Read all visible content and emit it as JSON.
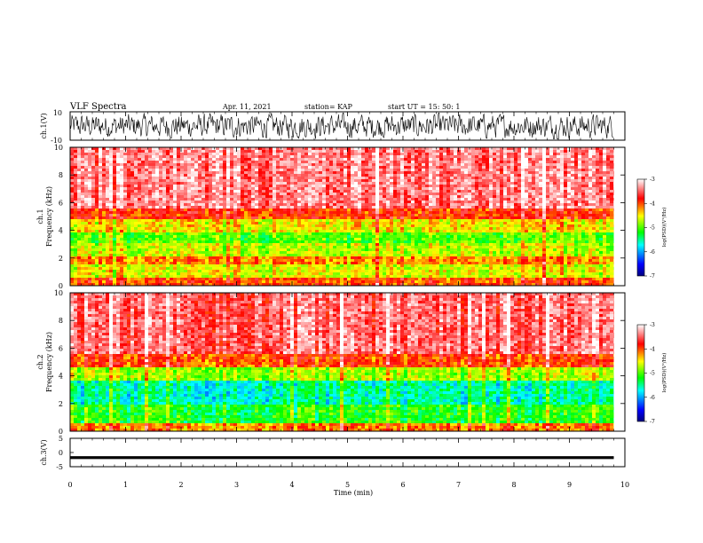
{
  "header": {
    "title": "VLF Spectra",
    "date": "Apr. 11, 2021",
    "station": "station= KAP",
    "start": "start  UT =   15: 50: 1"
  },
  "colors": {
    "spectrum_scale": [
      "#00007f",
      "#0000ff",
      "#00ffff",
      "#00ff00",
      "#ffff00",
      "#ff0000",
      "#ffffff"
    ],
    "waveform": "#000000"
  },
  "chart_data": [
    {
      "type": "line",
      "panel": "ch1-waveform",
      "ylabel": "ch.1(V)",
      "ylim": [
        -10,
        10
      ],
      "yticks": [
        "10",
        "-10"
      ],
      "xlim": [
        0,
        10
      ],
      "description_values": "dense noisy waveform spanning roughly -8 to +8 V over 0 to 9.8 min"
    },
    {
      "type": "heatmap",
      "panel": "ch1-spectrogram",
      "ylabel": "ch.1\nFrequency (kHz)",
      "ylabel_line1": "ch.1",
      "ylabel_line2": "Frequency (kHz)",
      "ylim": [
        0,
        10
      ],
      "yticks": [
        "0",
        "2",
        "4",
        "6",
        "8",
        "10"
      ],
      "xlim": [
        0,
        10
      ],
      "data_xmax": 9.8,
      "bands": [
        {
          "f0": 0,
          "f1": 0.6,
          "level": -4.0
        },
        {
          "f0": 0.6,
          "f1": 1.6,
          "level": -4.6
        },
        {
          "f0": 1.6,
          "f1": 2.2,
          "level": -4.2
        },
        {
          "f0": 2.2,
          "f1": 3.0,
          "level": -4.7
        },
        {
          "f0": 3.0,
          "f1": 3.8,
          "level": -5.0
        },
        {
          "f0": 3.8,
          "f1": 4.8,
          "level": -4.5
        },
        {
          "f0": 4.8,
          "f1": 5.5,
          "level": -3.9
        },
        {
          "f0": 5.5,
          "f1": 10,
          "level": -3.4
        }
      ],
      "colorbar": {
        "label": "log(PSD)(V²/Hz)",
        "min": -7,
        "max": -3,
        "ticks": [
          "-3",
          "-4",
          "-5",
          "-6",
          "-7"
        ]
      }
    },
    {
      "type": "heatmap",
      "panel": "ch2-spectrogram",
      "ylabel_line1": "ch.2",
      "ylabel_line2": "Frequency (kHz)",
      "ylim": [
        0,
        10
      ],
      "yticks": [
        "0",
        "2",
        "4",
        "6",
        "8",
        "10"
      ],
      "xlim": [
        0,
        10
      ],
      "data_xmax": 9.8,
      "bands": [
        {
          "f0": 0,
          "f1": 0.6,
          "level": -4.2
        },
        {
          "f0": 0.6,
          "f1": 2.0,
          "level": -5.2
        },
        {
          "f0": 2.0,
          "f1": 3.6,
          "level": -5.6
        },
        {
          "f0": 3.6,
          "f1": 4.6,
          "level": -4.8
        },
        {
          "f0": 4.6,
          "f1": 5.6,
          "level": -4.0
        },
        {
          "f0": 5.6,
          "f1": 10,
          "level": -3.5
        }
      ],
      "colorbar": {
        "label": "log(PSD)(V²/Hz)",
        "min": -7,
        "max": -3,
        "ticks": [
          "-3",
          "-4",
          "-5",
          "-6",
          "-7"
        ]
      }
    },
    {
      "type": "line",
      "panel": "ch3-waveform",
      "ylabel": "ch.3(V)",
      "ylim": [
        -5,
        5
      ],
      "yticks": [
        "5",
        "0",
        "-5"
      ],
      "xlim": [
        0,
        10
      ],
      "xlabel": "Time (min)",
      "xticks": [
        "0",
        "1",
        "2",
        "3",
        "4",
        "5",
        "6",
        "7",
        "8",
        "9",
        "10"
      ],
      "level_band": [
        -2.3,
        -1.3
      ]
    }
  ]
}
